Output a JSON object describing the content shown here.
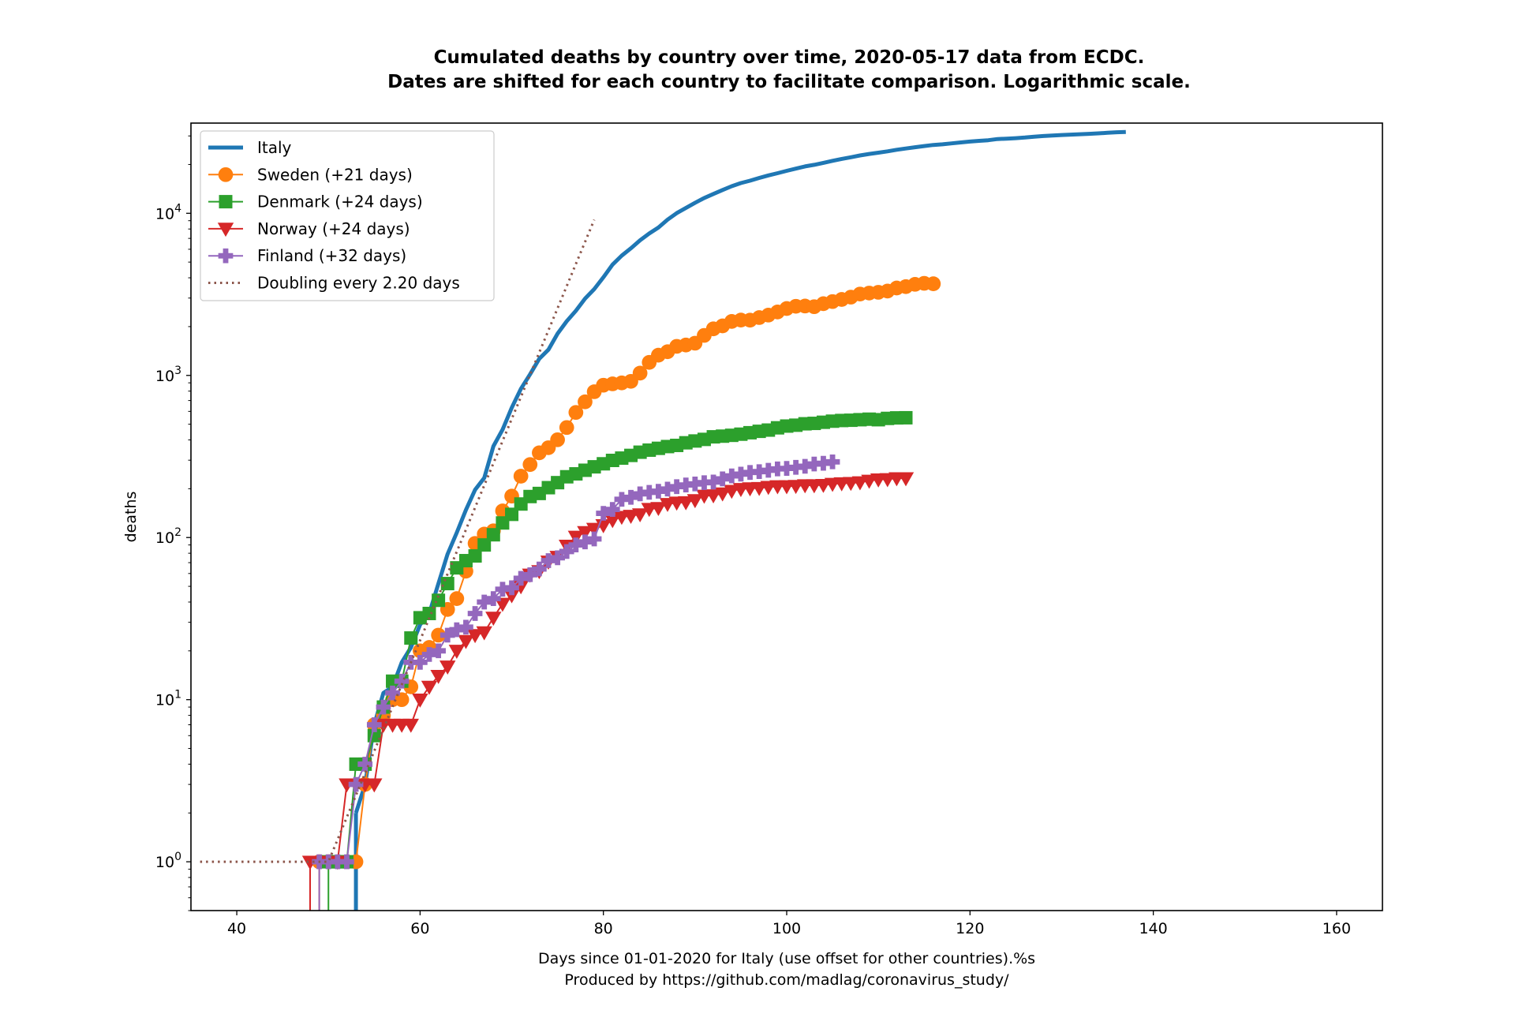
{
  "chart_data": {
    "type": "line",
    "title": "Cumulated deaths by country over time, 2020-05-17 data from ECDC.",
    "subtitle": "Dates are shifted for each country to facilitate comparison. Logarithmic scale.",
    "xlabel": "Days since 01-01-2020 for Italy (use offset for other countries).%s",
    "xlabel_line2": "Produced by https://github.com/madlag/coronavirus_study/",
    "ylabel": "deaths",
    "xlim": [
      35,
      165
    ],
    "ylim": [
      0.5,
      36000
    ],
    "yscale": "log",
    "grid": false,
    "legend_position": "top-left",
    "x_ticks": [
      {
        "value": 40,
        "label": "40"
      },
      {
        "value": 60,
        "label": "60"
      },
      {
        "value": 80,
        "label": "80"
      },
      {
        "value": 100,
        "label": "100"
      },
      {
        "value": 120,
        "label": "120"
      },
      {
        "value": 140,
        "label": "140"
      },
      {
        "value": 160,
        "label": "160"
      }
    ],
    "y_ticks": [
      {
        "value": 1,
        "base": "10",
        "exp": "0"
      },
      {
        "value": 10,
        "base": "10",
        "exp": "1"
      },
      {
        "value": 100,
        "base": "10",
        "exp": "2"
      },
      {
        "value": 1000,
        "base": "10",
        "exp": "3"
      },
      {
        "value": 10000,
        "base": "10",
        "exp": "4"
      }
    ],
    "series": [
      {
        "name": "Italy",
        "color": "#1f77b4",
        "marker": "none",
        "x": [
          53,
          54,
          55,
          56,
          57,
          58,
          59,
          60,
          61,
          62,
          63,
          64,
          65,
          66,
          67,
          68,
          69,
          70,
          71,
          72,
          73,
          74,
          75,
          76,
          77,
          78,
          79,
          80,
          81,
          82,
          83,
          84,
          85,
          86,
          87,
          88,
          89,
          90,
          91,
          92,
          93,
          94,
          95,
          96,
          97,
          98,
          99,
          100,
          101,
          102,
          103,
          104,
          105,
          106,
          107,
          108,
          109,
          110,
          111,
          112,
          113,
          114,
          115,
          116,
          117,
          118,
          119,
          120,
          121,
          122,
          123,
          124,
          125,
          126,
          127,
          128,
          129,
          130,
          131,
          132,
          133,
          134,
          135,
          136,
          137
        ],
        "y": [
          2,
          3,
          7,
          11,
          12,
          17,
          21,
          29,
          34,
          52,
          79,
          107,
          148,
          197,
          233,
          366,
          463,
          631,
          827,
          1016,
          1266,
          1441,
          1809,
          2158,
          2503,
          2978,
          3405,
          4032,
          4825,
          5476,
          6077,
          6820,
          7503,
          8165,
          9134,
          10023,
          10779,
          11591,
          12428,
          13155,
          13915,
          14681,
          15362,
          15887,
          16523,
          17127,
          17669,
          18279,
          18849,
          19468,
          19899,
          20465,
          21067,
          21645,
          22170,
          22745,
          23227,
          23660,
          24114,
          24648,
          25085,
          25549,
          25969,
          26384,
          26644,
          26977,
          27359,
          27682,
          27967,
          28236,
          28710,
          28884,
          29079,
          29315,
          29684,
          29958,
          30201,
          30395,
          30560,
          30739,
          30911,
          31106,
          31368,
          31610,
          31763
        ]
      },
      {
        "name": "Sweden (+21 days)",
        "color": "#ff7f0e",
        "marker": "circle",
        "x": [
          49,
          50,
          51,
          52,
          53,
          54,
          55,
          56,
          57,
          58,
          59,
          60,
          61,
          62,
          63,
          64,
          65,
          66,
          67,
          68,
          69,
          70,
          71,
          72,
          73,
          74,
          75,
          76,
          77,
          78,
          79,
          80,
          81,
          82,
          83,
          84,
          85,
          86,
          87,
          88,
          89,
          90,
          91,
          92,
          93,
          94,
          95,
          96,
          97,
          98,
          99,
          100,
          101,
          102,
          103,
          104,
          105,
          106,
          107,
          108,
          109,
          110,
          111,
          112,
          113,
          114,
          115,
          116
        ],
        "y": [
          1,
          1,
          1,
          1,
          1,
          3,
          7,
          8,
          10,
          10,
          12,
          20,
          21,
          25,
          36,
          42,
          62,
          92,
          105,
          110,
          146,
          180,
          239,
          282,
          333,
          358,
          401,
          477,
          591,
          687,
          793,
          870,
          887,
          899,
          919,
          1033,
          1203,
          1333,
          1400,
          1511,
          1540,
          1580,
          1765,
          1937,
          2021,
          2152,
          2194,
          2192,
          2274,
          2355,
          2462,
          2586,
          2669,
          2679,
          2653,
          2769,
          2854,
          2941,
          3040,
          3175,
          3220,
          3256,
          3313,
          3460,
          3529,
          3646,
          3698,
          3674
        ]
      },
      {
        "name": "Denmark (+24 days)",
        "color": "#2ca02c",
        "marker": "square",
        "x": [
          50,
          51,
          52,
          53,
          54,
          55,
          56,
          57,
          58,
          59,
          60,
          61,
          62,
          63,
          64,
          65,
          66,
          67,
          68,
          69,
          70,
          71,
          72,
          73,
          74,
          75,
          76,
          77,
          78,
          79,
          80,
          81,
          82,
          83,
          84,
          85,
          86,
          87,
          88,
          89,
          90,
          91,
          92,
          93,
          94,
          95,
          96,
          97,
          98,
          99,
          100,
          101,
          102,
          103,
          104,
          105,
          106,
          107,
          108,
          109,
          110,
          111,
          112,
          113
        ],
        "y": [
          1,
          1,
          1,
          4,
          4,
          6,
          9,
          13,
          13,
          24,
          32,
          34,
          41,
          52,
          65,
          72,
          77,
          90,
          104,
          123,
          139,
          161,
          179,
          187,
          203,
          218,
          237,
          247,
          260,
          273,
          285,
          299,
          309,
          321,
          336,
          346,
          355,
          364,
          370,
          384,
          394,
          403,
          418,
          422,
          427,
          434,
          443,
          452,
          460,
          475,
          487,
          493,
          503,
          506,
          514,
          522,
          527,
          529,
          533,
          537,
          533,
          543,
          547,
          548
        ]
      },
      {
        "name": "Norway (+24 days)",
        "color": "#d62728",
        "marker": "triangle-down",
        "x": [
          48,
          49,
          50,
          51,
          52,
          53,
          54,
          55,
          56,
          57,
          58,
          59,
          60,
          61,
          62,
          63,
          64,
          65,
          66,
          67,
          68,
          69,
          70,
          71,
          72,
          73,
          74,
          75,
          76,
          77,
          78,
          79,
          80,
          81,
          82,
          83,
          84,
          85,
          86,
          87,
          88,
          89,
          90,
          91,
          92,
          93,
          94,
          95,
          96,
          97,
          98,
          99,
          100,
          101,
          102,
          103,
          104,
          105,
          106,
          107,
          108,
          109,
          110,
          111,
          112,
          113
        ],
        "y": [
          1,
          1,
          1,
          1,
          3,
          3,
          3,
          3,
          7,
          7,
          7,
          7,
          10,
          12,
          14,
          16,
          20,
          23,
          25,
          26,
          32,
          39,
          44,
          50,
          59,
          62,
          71,
          76,
          89,
          101,
          108,
          113,
          119,
          128,
          134,
          136,
          139,
          150,
          152,
          161,
          164,
          165,
          170,
          181,
          182,
          187,
          194,
          199,
          201,
          202,
          205,
          207,
          207,
          208,
          210,
          210,
          211,
          214,
          216,
          217,
          219,
          224,
          228,
          229,
          232,
          232
        ]
      },
      {
        "name": "Finland (+32 days)",
        "color": "#9467bd",
        "marker": "plus",
        "x": [
          49,
          50,
          51,
          52,
          53,
          54,
          55,
          56,
          57,
          58,
          59,
          60,
          61,
          62,
          63,
          64,
          65,
          66,
          67,
          68,
          69,
          70,
          71,
          72,
          73,
          74,
          75,
          76,
          77,
          78,
          79,
          80,
          81,
          82,
          83,
          84,
          85,
          86,
          87,
          88,
          89,
          90,
          91,
          92,
          93,
          94,
          95,
          96,
          97,
          98,
          99,
          100,
          101,
          102,
          103,
          104,
          105
        ],
        "y": [
          1,
          1,
          1,
          1,
          3,
          4,
          7,
          9,
          11,
          13,
          17,
          17,
          19,
          20,
          25,
          27,
          28,
          34,
          40,
          42,
          48,
          49,
          56,
          59,
          64,
          72,
          75,
          82,
          90,
          94,
          98,
          141,
          149,
          172,
          177,
          186,
          190,
          193,
          199,
          206,
          211,
          214,
          218,
          220,
          230,
          240,
          246,
          252,
          255,
          260,
          265,
          267,
          271,
          275,
          284,
          287,
          293
        ]
      },
      {
        "name": "Doubling every 2.20 days",
        "color": "#8c564b",
        "marker": "none",
        "linestyle": "dotted",
        "x": [
          36,
          50,
          51,
          52,
          53,
          54,
          55,
          56,
          57,
          58,
          59,
          60,
          61,
          62,
          63,
          64,
          65,
          66,
          67,
          68,
          69,
          70,
          71,
          72,
          73,
          74,
          75,
          76,
          77,
          78,
          79
        ],
        "y": [
          1,
          1,
          1.37,
          1.88,
          2.57,
          3.52,
          4.82,
          6.6,
          9.05,
          12.39,
          16.96,
          23.23,
          31.81,
          43.56,
          59.65,
          81.69,
          111.87,
          153.2,
          209.79,
          287.28,
          393.39,
          538.72,
          737.71,
          1010.2,
          1383.4,
          1894.4,
          2594.1,
          3552.4,
          4864.6,
          6661.5,
          9122.2
        ]
      }
    ]
  }
}
